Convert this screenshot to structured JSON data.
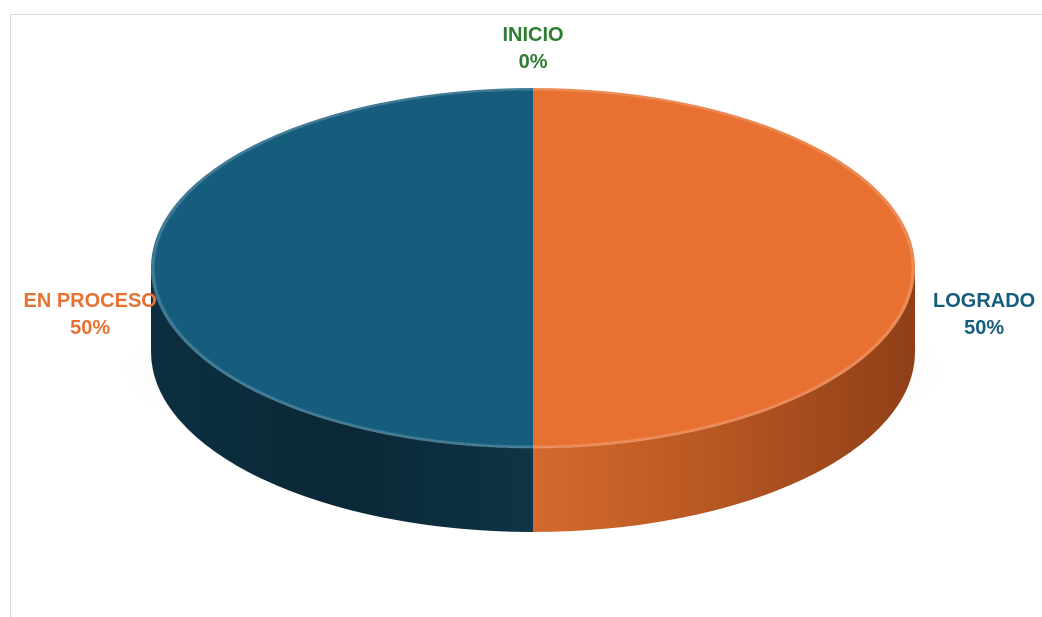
{
  "chart_data": {
    "type": "pie",
    "style": "3d",
    "title": "",
    "categories": [
      "INICIO",
      "EN PROCESO",
      "LOGRADO"
    ],
    "values": [
      0,
      50,
      50
    ],
    "value_labels": [
      "0%",
      "50%",
      "50%"
    ],
    "colors": [
      "#2e7d32",
      "#e87131",
      "#165d7d"
    ],
    "legend": "none",
    "data_labels": "category and percentage"
  }
}
